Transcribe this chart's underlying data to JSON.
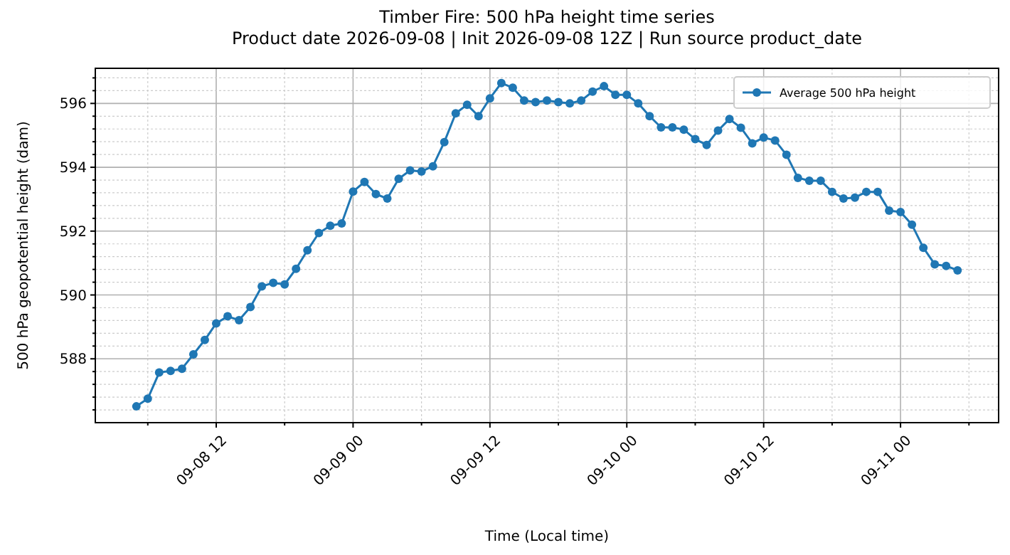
{
  "chart_data": {
    "type": "line",
    "title": "Timber Fire: 500 hPa height time series",
    "subtitle": "Product date 2026-09-08 | Init 2026-09-08 12Z | Run source product_date",
    "xlabel": "Time (Local time)",
    "ylabel": "500 hPa geopotential height (dam)",
    "x": [
      "2026-09-08T05:00",
      "2026-09-08T06:00",
      "2026-09-08T07:00",
      "2026-09-08T08:00",
      "2026-09-08T09:00",
      "2026-09-08T10:00",
      "2026-09-08T11:00",
      "2026-09-08T12:00",
      "2026-09-08T13:00",
      "2026-09-08T14:00",
      "2026-09-08T15:00",
      "2026-09-08T16:00",
      "2026-09-08T17:00",
      "2026-09-08T18:00",
      "2026-09-08T19:00",
      "2026-09-08T20:00",
      "2026-09-08T21:00",
      "2026-09-08T22:00",
      "2026-09-08T23:00",
      "2026-09-09T00:00",
      "2026-09-09T01:00",
      "2026-09-09T02:00",
      "2026-09-09T03:00",
      "2026-09-09T04:00",
      "2026-09-09T05:00",
      "2026-09-09T06:00",
      "2026-09-09T07:00",
      "2026-09-09T08:00",
      "2026-09-09T09:00",
      "2026-09-09T10:00",
      "2026-09-09T11:00",
      "2026-09-09T12:00",
      "2026-09-09T13:00",
      "2026-09-09T14:00",
      "2026-09-09T15:00",
      "2026-09-09T16:00",
      "2026-09-09T17:00",
      "2026-09-09T18:00",
      "2026-09-09T19:00",
      "2026-09-09T20:00",
      "2026-09-09T21:00",
      "2026-09-09T22:00",
      "2026-09-09T23:00",
      "2026-09-10T00:00",
      "2026-09-10T01:00",
      "2026-09-10T02:00",
      "2026-09-10T03:00",
      "2026-09-10T04:00",
      "2026-09-10T05:00",
      "2026-09-10T06:00",
      "2026-09-10T07:00",
      "2026-09-10T08:00",
      "2026-09-10T09:00",
      "2026-09-10T10:00",
      "2026-09-10T11:00",
      "2026-09-10T12:00",
      "2026-09-10T13:00",
      "2026-09-10T14:00",
      "2026-09-10T15:00",
      "2026-09-10T16:00",
      "2026-09-10T17:00",
      "2026-09-10T18:00",
      "2026-09-10T19:00",
      "2026-09-10T20:00",
      "2026-09-10T21:00",
      "2026-09-10T22:00",
      "2026-09-10T23:00",
      "2026-09-11T00:00",
      "2026-09-11T01:00",
      "2026-09-11T02:00",
      "2026-09-11T03:00",
      "2026-09-11T04:00",
      "2026-09-11T05:00"
    ],
    "series": [
      {
        "name": "Average 500 hPa height",
        "color": "#1f77b4",
        "values": [
          586.51,
          586.75,
          587.57,
          587.62,
          587.69,
          588.14,
          588.59,
          589.11,
          589.33,
          589.21,
          589.62,
          590.27,
          590.38,
          590.33,
          590.82,
          591.4,
          591.94,
          592.17,
          592.24,
          593.24,
          593.54,
          593.16,
          593.02,
          593.64,
          593.9,
          593.87,
          594.03,
          594.79,
          595.69,
          595.96,
          595.6,
          596.16,
          596.64,
          596.49,
          596.09,
          596.04,
          596.09,
          596.04,
          596.0,
          596.09,
          596.37,
          596.54,
          596.27,
          596.27,
          596.0,
          595.6,
          595.25,
          595.25,
          595.18,
          594.88,
          594.7,
          595.15,
          595.51,
          595.24,
          594.75,
          594.93,
          594.84,
          594.39,
          593.67,
          593.58,
          593.58,
          593.23,
          593.02,
          593.05,
          593.23,
          593.23,
          592.64,
          592.6,
          592.2,
          591.48,
          590.96,
          590.91,
          590.77
        ]
      }
    ],
    "xlim": [
      "2026-09-08T01:24",
      "2026-09-11T08:36"
    ],
    "xticks": [
      {
        "value": "2026-09-08T06:00",
        "label": null
      },
      {
        "value": "2026-09-08T12:00",
        "label": "09-08 12"
      },
      {
        "value": "2026-09-08T18:00",
        "label": null
      },
      {
        "value": "2026-09-09T00:00",
        "label": "09-09 00"
      },
      {
        "value": "2026-09-09T06:00",
        "label": null
      },
      {
        "value": "2026-09-09T12:00",
        "label": "09-09 12"
      },
      {
        "value": "2026-09-09T18:00",
        "label": null
      },
      {
        "value": "2026-09-10T00:00",
        "label": "09-10 00"
      },
      {
        "value": "2026-09-10T06:00",
        "label": null
      },
      {
        "value": "2026-09-10T12:00",
        "label": "09-10 12"
      },
      {
        "value": "2026-09-10T18:00",
        "label": null
      },
      {
        "value": "2026-09-11T00:00",
        "label": "09-11 00"
      },
      {
        "value": "2026-09-11T06:00",
        "label": null
      }
    ],
    "ylim": [
      586.0,
      597.1
    ],
    "yticks": [
      {
        "value": 586.4,
        "label": null
      },
      {
        "value": 586.8,
        "label": null
      },
      {
        "value": 587.2,
        "label": null
      },
      {
        "value": 587.6,
        "label": null
      },
      588,
      {
        "value": 588.4,
        "label": null
      },
      {
        "value": 588.8,
        "label": null
      },
      {
        "value": 589.2,
        "label": null
      },
      {
        "value": 589.6,
        "label": null
      },
      590,
      {
        "value": 590.4,
        "label": null
      },
      {
        "value": 590.8,
        "label": null
      },
      {
        "value": 591.2,
        "label": null
      },
      {
        "value": 591.6,
        "label": null
      },
      592,
      {
        "value": 592.4,
        "label": null
      },
      {
        "value": 592.8,
        "label": null
      },
      {
        "value": 593.2,
        "label": null
      },
      {
        "value": 593.6,
        "label": null
      },
      594,
      {
        "value": 594.4,
        "label": null
      },
      {
        "value": 594.8,
        "label": null
      },
      {
        "value": 595.2,
        "label": null
      },
      {
        "value": 595.6,
        "label": null
      },
      596,
      {
        "value": 596.4,
        "label": null
      },
      {
        "value": 596.8,
        "label": null
      }
    ],
    "grid": true,
    "legend": "top right",
    "marker": "circle",
    "line_style": "solid"
  }
}
